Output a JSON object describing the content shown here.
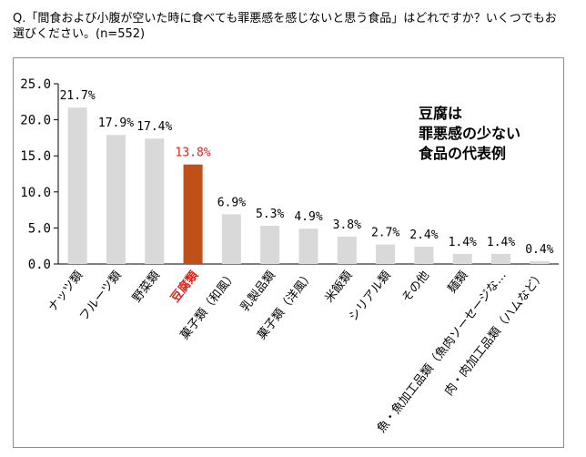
{
  "question": "Q.「間食および小腹が空いた時に食べても罪悪感を感じないと思う食品」はどれですか？いくつでもお選びください。(n=552)",
  "callout": "豆腐は\n罪悪感の少ない\n食品の代表例",
  "colors": {
    "bar": "#d9d9d9",
    "highlight_bar": "#c0501a",
    "highlight_text": "#e0231b"
  },
  "chart_data": {
    "type": "bar",
    "title": "",
    "xlabel": "",
    "ylabel": "",
    "ylim": [
      0,
      25
    ],
    "grid": false,
    "yticks": [
      0,
      5,
      10,
      15,
      20,
      25
    ],
    "ytick_labels": [
      "0.0",
      "5.0",
      "10.0",
      "15.0",
      "20.0",
      "25.0"
    ],
    "categories": [
      "ナッツ類",
      "フルーツ類",
      "野菜類",
      "豆腐類",
      "菓子類（和風）",
      "乳製品類",
      "菓子類（洋風）",
      "米飯類",
      "シリアル類",
      "その他",
      "麺類",
      "魚・魚加工品類（魚肉ソーセージな…",
      "肉・肉加工品類（ハムなど）"
    ],
    "values": [
      21.7,
      17.9,
      17.4,
      13.8,
      6.9,
      5.3,
      4.9,
      3.8,
      2.7,
      2.4,
      1.4,
      1.4,
      0.4
    ],
    "value_labels": [
      "21.7%",
      "17.9%",
      "17.4%",
      "13.8%",
      "6.9%",
      "5.3%",
      "4.9%",
      "3.8%",
      "2.7%",
      "2.4%",
      "1.4%",
      "1.4%",
      "0.4%"
    ],
    "highlight_index": 3
  }
}
